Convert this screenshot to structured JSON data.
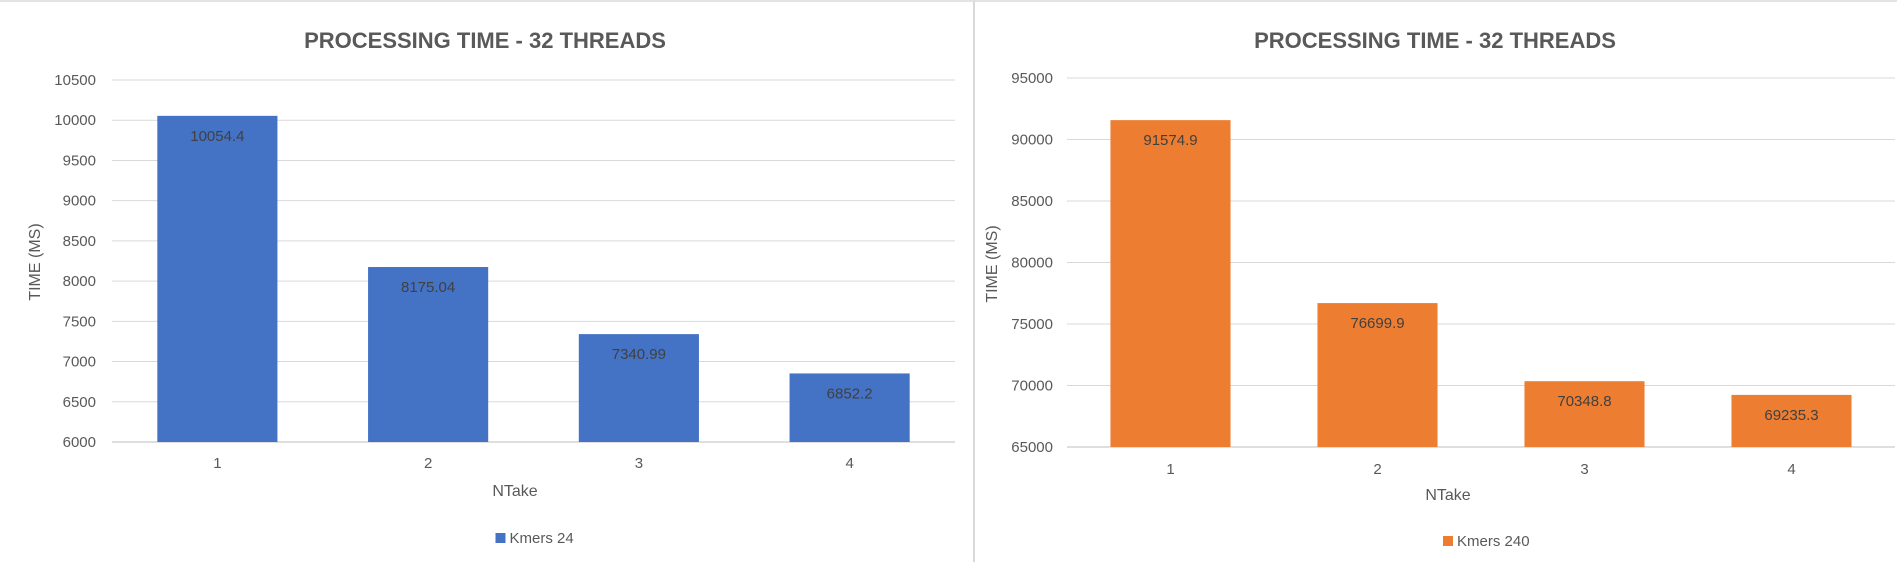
{
  "chart_data": [
    {
      "type": "bar",
      "title": "PROCESSING TIME - 32 THREADS",
      "xlabel": "NTake",
      "ylabel": "TIME (MS)",
      "categories": [
        "1",
        "2",
        "3",
        "4"
      ],
      "series": [
        {
          "name": "Kmers 24",
          "values": [
            10054.4,
            8175.04,
            7340.99,
            6852.2
          ],
          "labels": [
            "10054.4",
            "8175.04",
            "7340.99",
            "6852.2"
          ],
          "color": "#4472C4"
        }
      ],
      "ylim": [
        6000,
        10500
      ],
      "yticks": [
        "6000",
        "6500",
        "7000",
        "7500",
        "8000",
        "8500",
        "9000",
        "9500",
        "10000",
        "10500"
      ],
      "grid": true,
      "legend": "bottom"
    },
    {
      "type": "bar",
      "title": "PROCESSING TIME - 32 THREADS",
      "xlabel": "NTake",
      "ylabel": "TIME (MS)",
      "categories": [
        "1",
        "2",
        "3",
        "4"
      ],
      "series": [
        {
          "name": "Kmers 240",
          "values": [
            91574.9,
            76699.9,
            70348.8,
            69235.3
          ],
          "labels": [
            "91574.9",
            "76699.9",
            "70348.8",
            "69235.3"
          ],
          "color": "#ED7D31"
        }
      ],
      "ylim": [
        65000,
        95000
      ],
      "yticks": [
        "65000",
        "70000",
        "75000",
        "80000",
        "85000",
        "90000",
        "95000"
      ],
      "grid": true,
      "legend": "bottom"
    }
  ]
}
